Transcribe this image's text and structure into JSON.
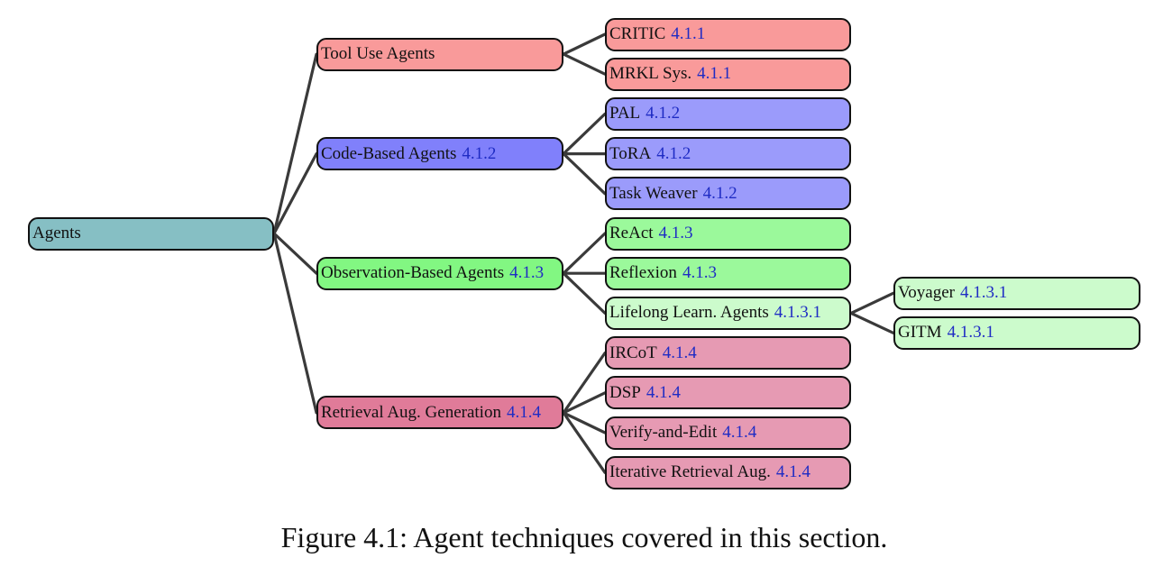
{
  "colors": {
    "root": "#86bfc4",
    "tool": "#f99a9a",
    "code": "#8080fb",
    "code_leaf": "#9b9bfb",
    "obs": "#82f782",
    "obs_leaf": "#9bf99b",
    "lifelong_leaf": "#ccfbcc",
    "rag": "#e07b99",
    "rag_leaf": "#e69ab3",
    "edge": "#3a3a3a",
    "ref_text": "#1f2cc4"
  },
  "tree": {
    "label": "Agents",
    "ref": "",
    "color": "root",
    "children": [
      {
        "label": "Tool Use Agents",
        "ref": "",
        "color": "tool",
        "children": [
          {
            "label": "CRITIC",
            "ref": "4.1.1",
            "color": "tool"
          },
          {
            "label": "MRKL Sys.",
            "ref": "4.1.1",
            "color": "tool"
          }
        ]
      },
      {
        "label": "Code-Based Agents",
        "ref": "4.1.2",
        "color": "code",
        "children": [
          {
            "label": "PAL",
            "ref": "4.1.2",
            "color": "code_leaf"
          },
          {
            "label": "ToRA",
            "ref": "4.1.2",
            "color": "code_leaf"
          },
          {
            "label": "Task Weaver",
            "ref": "4.1.2",
            "color": "code_leaf"
          }
        ]
      },
      {
        "label": "Observation-Based Agents",
        "ref": "4.1.3",
        "color": "obs",
        "children": [
          {
            "label": "ReAct",
            "ref": "4.1.3",
            "color": "obs_leaf"
          },
          {
            "label": "Reflexion",
            "ref": "4.1.3",
            "color": "obs_leaf"
          },
          {
            "label": "Lifelong Learn. Agents",
            "ref": "4.1.3.1",
            "color": "lifelong_leaf",
            "children": [
              {
                "label": "Voyager",
                "ref": "4.1.3.1",
                "color": "lifelong_leaf"
              },
              {
                "label": "GITM",
                "ref": "4.1.3.1",
                "color": "lifelong_leaf"
              }
            ]
          }
        ]
      },
      {
        "label": "Retrieval Aug. Generation",
        "ref": "4.1.4",
        "color": "rag",
        "children": [
          {
            "label": "IRCoT",
            "ref": "4.1.4",
            "color": "rag_leaf"
          },
          {
            "label": "DSP",
            "ref": "4.1.4",
            "color": "rag_leaf"
          },
          {
            "label": "Verify-and-Edit",
            "ref": "4.1.4",
            "color": "rag_leaf"
          },
          {
            "label": "Iterative Retrieval Aug.",
            "ref": "4.1.4",
            "color": "rag_leaf"
          }
        ]
      }
    ]
  },
  "caption": "Figure 4.1: Agent techniques covered in this section."
}
